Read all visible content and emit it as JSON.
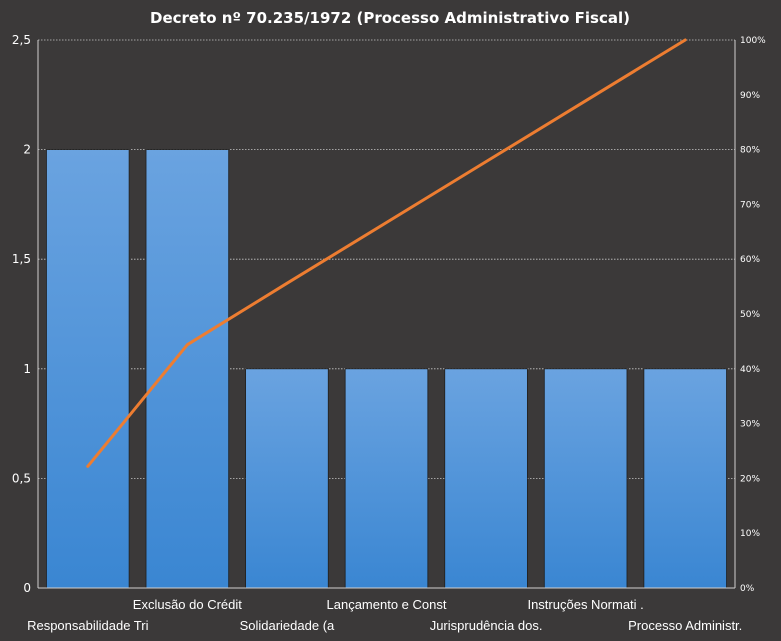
{
  "chart_data": {
    "type": "bar",
    "title": "Decreto  nº  70.235/1972  (Processo  Administrativo  Fiscal)",
    "categories": [
      "Responsabilidade Tri",
      "Exclusão do Crédit",
      "Solidariedade (a",
      "Lançamento e Const",
      "Jurisprudência dos.",
      "Instruções Normati .",
      "Processo Administr."
    ],
    "series": [
      {
        "type": "bar",
        "values": [
          2,
          2,
          1,
          1,
          1,
          1,
          1
        ]
      },
      {
        "type": "line",
        "axis": "right",
        "values": [
          22.2,
          44.4,
          55.6,
          66.7,
          77.8,
          88.9,
          100
        ]
      }
    ],
    "y_left": {
      "ylim": [
        0,
        2.5
      ],
      "ticks": [
        0,
        0.5,
        1,
        1.5,
        2,
        2.5
      ],
      "tick_labels": [
        "0",
        "0,5",
        "1",
        "1,5",
        "2",
        "2,5"
      ]
    },
    "y_right": {
      "ylim": [
        0,
        100
      ],
      "ticks": [
        0,
        10,
        20,
        30,
        40,
        50,
        60,
        70,
        80,
        90,
        100
      ],
      "tick_labels": [
        "0%",
        "10%",
        "20%",
        "30%",
        "40%",
        "50%",
        "60%",
        "70%",
        "80%",
        "90%",
        "100%"
      ]
    },
    "grid": true,
    "legend": "none",
    "colors": {
      "background": "#3b3939",
      "bar_top": "#6aa3e0",
      "bar_bottom": "#3a86d2",
      "bar_stroke": "#1f1f1f",
      "line": "#ed7d31",
      "grid": "#c8c8c8",
      "axis": "#d0d0d0"
    }
  }
}
